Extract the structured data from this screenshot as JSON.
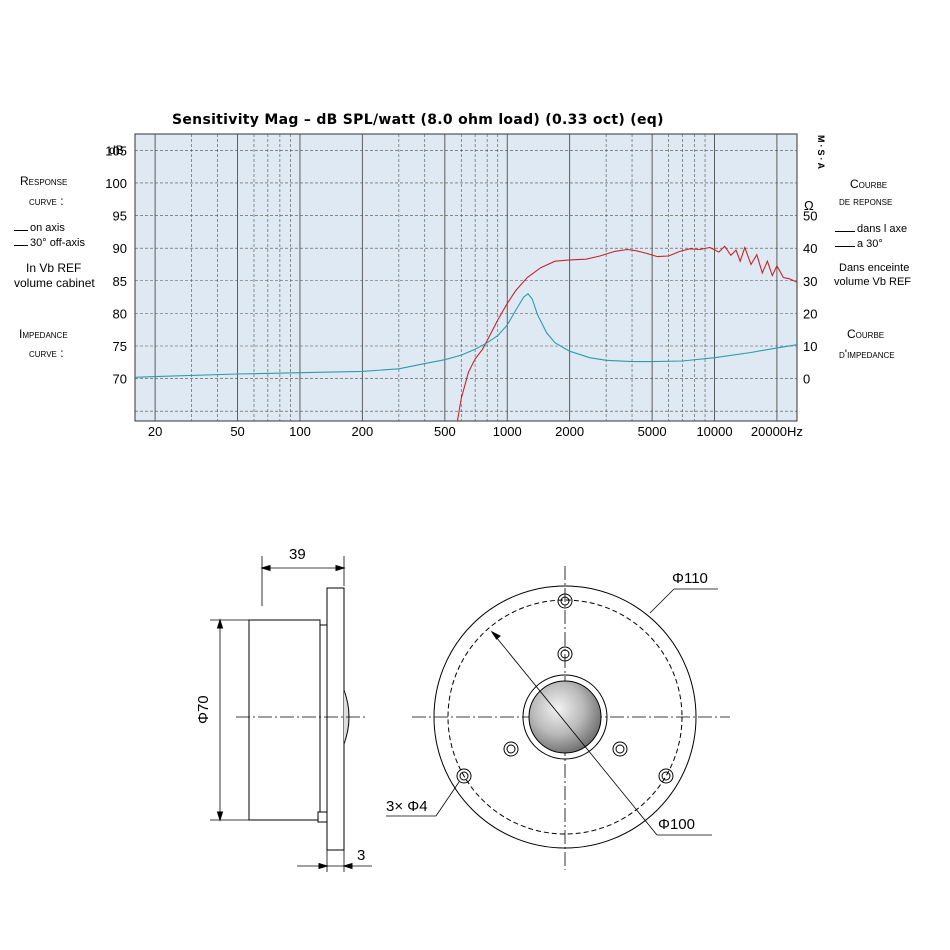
{
  "chart_data": {
    "type": "line",
    "title": "Sensitivity  Mag – dB  SPL/watt  (8.0  ohm load)  (0.33 oct)  (eq)",
    "x_scale": "log",
    "x_ticks": [
      "20",
      "50",
      "100",
      "200",
      "500",
      "1000",
      "2000",
      "5000",
      "10000",
      "20000Hz"
    ],
    "x_tick_values": [
      20,
      50,
      100,
      200,
      500,
      1000,
      2000,
      5000,
      10000,
      20000
    ],
    "xlim": [
      16,
      25000
    ],
    "y_left": {
      "unit": "dB",
      "ticks": [
        "105",
        "100",
        "95",
        "90",
        "85",
        "80",
        "75",
        "70"
      ],
      "tick_values": [
        105,
        100,
        95,
        90,
        85,
        80,
        75,
        70
      ],
      "ylim": [
        63.5,
        107.5
      ]
    },
    "y_right": {
      "unit": "Ω",
      "ticks": [
        "50",
        "40",
        "30",
        "20",
        "10",
        "0"
      ],
      "tick_values": [
        50,
        40,
        30,
        20,
        10,
        0
      ]
    },
    "right_axis_label": "Ω",
    "grid": true,
    "series": [
      {
        "name": "on axis",
        "color": "#c8262b",
        "x": [
          575,
          600,
          650,
          700,
          760,
          820,
          900,
          1000,
          1100,
          1250,
          1450,
          1700,
          2000,
          2400,
          2800,
          3300,
          3800,
          4200,
          4700,
          5300,
          6000,
          6800,
          7600,
          8500,
          9500,
          10500,
          11200,
          12000,
          12700,
          13300,
          14000,
          15000,
          16000,
          17000,
          18000,
          19000,
          20000,
          21500,
          23000,
          25000
        ],
        "y": [
          63.5,
          67,
          71,
          73,
          74.5,
          76.5,
          79,
          81.5,
          83.5,
          85.5,
          87,
          88,
          88.2,
          88.3,
          88.8,
          89.5,
          89.8,
          89.6,
          89.2,
          88.7,
          88.8,
          89.5,
          89.9,
          89.8,
          90.1,
          89.4,
          90.3,
          88.9,
          89.7,
          88,
          90.1,
          87.5,
          89,
          86.2,
          88,
          85.8,
          87.3,
          85.5,
          85.3,
          84.8
        ]
      },
      {
        "name": "impedance",
        "color": "#2a9cac",
        "x": [
          16,
          20,
          50,
          100,
          200,
          300,
          400,
          500,
          600,
          700,
          800,
          900,
          1000,
          1100,
          1200,
          1260,
          1320,
          1400,
          1550,
          1700,
          2000,
          2500,
          3000,
          4000,
          5000,
          7000,
          10000,
          15000,
          20000,
          25000
        ],
        "y": [
          70.2,
          70.3,
          70.7,
          70.9,
          71.1,
          71.5,
          72.3,
          72.9,
          73.6,
          74.5,
          75.5,
          76.6,
          78.2,
          80.5,
          82.5,
          83,
          82.2,
          79.8,
          77,
          75.5,
          74.2,
          73.2,
          72.8,
          72.6,
          72.6,
          72.7,
          73.2,
          74,
          74.7,
          75.2
        ]
      }
    ],
    "left_labels": {
      "response": "Response",
      "curve": "curve :",
      "on_axis": "on axis",
      "off_axis": "30° off-axis",
      "vb1": "In Vb REF",
      "vb2": "volume cabinet",
      "impedance": "Impedance",
      "curve2": "curve :"
    },
    "right_labels": {
      "courbe": "Courbe",
      "de_reponse": "de reponse",
      "dans_axe": "dans l axe",
      "a30": "a 30°",
      "dans_enceinte": "Dans enceinte",
      "volume_vb": "volume  Vb REF",
      "courbe2": "Courbe",
      "impedance": "d'impedance"
    },
    "brand_vertical": "M·S·A"
  },
  "drawing": {
    "side_width": "39",
    "side_diameter": "Φ70",
    "flange": "3",
    "outer_diameter": "Φ110",
    "bolt_circle": "Φ100",
    "holes": "3× Φ4"
  }
}
